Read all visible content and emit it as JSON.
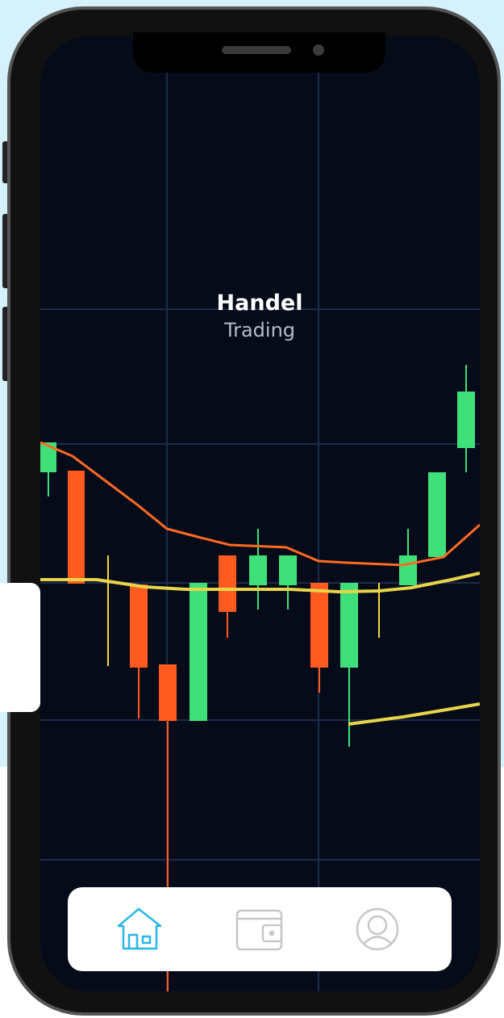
{
  "header": {
    "title": "Handel",
    "subtitle": "Trading"
  }
}
